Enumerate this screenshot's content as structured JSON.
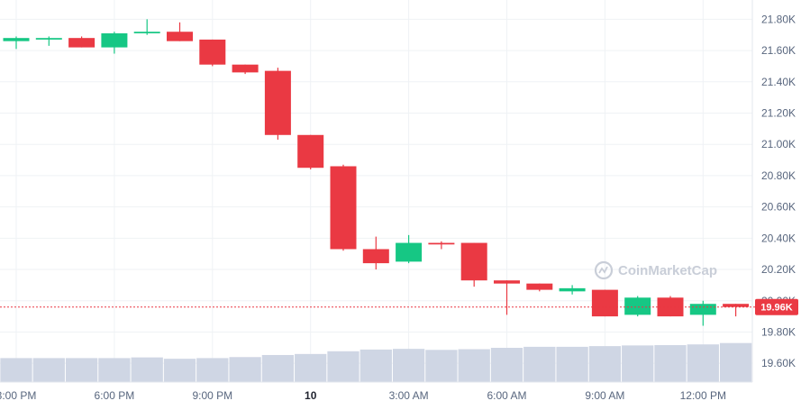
{
  "chart_data": {
    "type": "candlestick",
    "watermark": "CoinMarketCap",
    "y_axis": {
      "ticks": [
        "21.80K",
        "21.60K",
        "21.40K",
        "21.20K",
        "21.00K",
        "20.80K",
        "20.60K",
        "20.40K",
        "20.20K",
        "20.00K",
        "19.80K",
        "19.60K"
      ],
      "tick_values": [
        21800,
        21600,
        21400,
        21200,
        21000,
        20800,
        20600,
        20400,
        20200,
        20000,
        19800,
        19600
      ],
      "position": "right",
      "range": [
        19480,
        21900
      ]
    },
    "x_axis": {
      "ticks": [
        {
          "label": "3:00 PM",
          "x": 0
        },
        {
          "label": "6:00 PM",
          "x": 3
        },
        {
          "label": "9:00 PM",
          "x": 6
        },
        {
          "label": "10",
          "x": 9,
          "bold": true
        },
        {
          "label": "3:00 AM",
          "x": 12
        },
        {
          "label": "6:00 AM",
          "x": 15
        },
        {
          "label": "9:00 AM",
          "x": 18
        },
        {
          "label": "12:00 PM",
          "x": 21
        }
      ],
      "unit": "hour index (hourly candles)"
    },
    "last_price": {
      "value": 19960,
      "label": "19.96K",
      "color": "#ea3943"
    },
    "colors": {
      "up": "#16c784",
      "down": "#ea3943",
      "volume": "#cfd6e4",
      "grid": "#eff2f5"
    },
    "grid": true,
    "candles": [
      {
        "x": 0,
        "open": 21660,
        "high": 21690,
        "low": 21610,
        "close": 21680
      },
      {
        "x": 1,
        "open": 21670,
        "high": 21690,
        "low": 21630,
        "close": 21680
      },
      {
        "x": 2,
        "open": 21680,
        "high": 21690,
        "low": 21620,
        "close": 21620
      },
      {
        "x": 3,
        "open": 21620,
        "high": 21720,
        "low": 21580,
        "close": 21710
      },
      {
        "x": 4,
        "open": 21710,
        "high": 21800,
        "low": 21700,
        "close": 21720
      },
      {
        "x": 5,
        "open": 21720,
        "high": 21780,
        "low": 21660,
        "close": 21660
      },
      {
        "x": 6,
        "open": 21670,
        "high": 21670,
        "low": 21500,
        "close": 21510
      },
      {
        "x": 7,
        "open": 21510,
        "high": 21510,
        "low": 21450,
        "close": 21460
      },
      {
        "x": 8,
        "open": 21470,
        "high": 21490,
        "low": 21030,
        "close": 21060
      },
      {
        "x": 9,
        "open": 21060,
        "high": 21060,
        "low": 20840,
        "close": 20850
      },
      {
        "x": 10,
        "open": 20860,
        "high": 20870,
        "low": 20320,
        "close": 20330
      },
      {
        "x": 11,
        "open": 20330,
        "high": 20410,
        "low": 20200,
        "close": 20240
      },
      {
        "x": 12,
        "open": 20250,
        "high": 20420,
        "low": 20240,
        "close": 20370
      },
      {
        "x": 13,
        "open": 20370,
        "high": 20380,
        "low": 20330,
        "close": 20360
      },
      {
        "x": 14,
        "open": 20370,
        "high": 20370,
        "low": 20090,
        "close": 20130
      },
      {
        "x": 15,
        "open": 20130,
        "high": 20130,
        "low": 19910,
        "close": 20110
      },
      {
        "x": 16,
        "open": 20110,
        "high": 20110,
        "low": 20060,
        "close": 20070
      },
      {
        "x": 17,
        "open": 20060,
        "high": 20100,
        "low": 20040,
        "close": 20080
      },
      {
        "x": 18,
        "open": 20070,
        "high": 20070,
        "low": 19900,
        "close": 19900
      },
      {
        "x": 19,
        "open": 19910,
        "high": 20030,
        "low": 19900,
        "close": 20020
      },
      {
        "x": 20,
        "open": 20020,
        "high": 20030,
        "low": 19900,
        "close": 19900
      },
      {
        "x": 21,
        "open": 19910,
        "high": 20000,
        "low": 19840,
        "close": 19980
      },
      {
        "x": 22,
        "open": 19980,
        "high": 19980,
        "low": 19900,
        "close": 19960
      }
    ],
    "volume": [
      0.7,
      0.7,
      0.7,
      0.7,
      0.72,
      0.68,
      0.7,
      0.73,
      0.79,
      0.82,
      0.9,
      0.95,
      0.97,
      0.94,
      0.96,
      1.0,
      1.03,
      1.03,
      1.05,
      1.07,
      1.08,
      1.1,
      1.14
    ],
    "volume_unit": "relative"
  }
}
